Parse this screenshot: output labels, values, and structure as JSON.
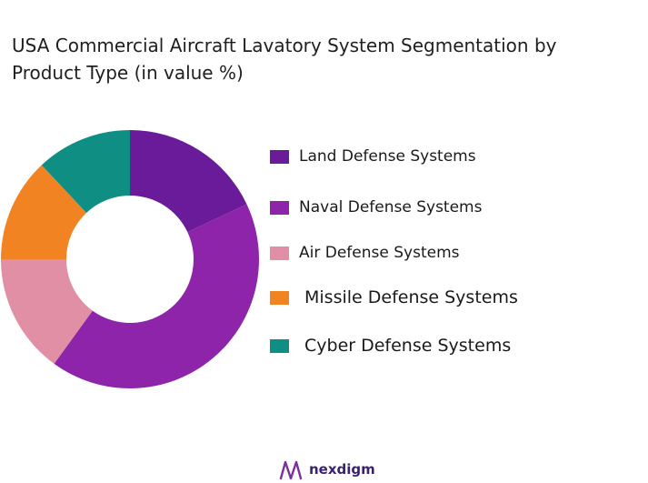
{
  "chart_data": {
    "type": "pie",
    "donut": true,
    "title": "USA Commercial Aircraft Lavatory System Segmentation by Product Type (in value %)",
    "categories": [
      "Land Defense Systems",
      "Naval Defense Systems",
      "Air Defense Systems",
      "Missile Defense Systems",
      "Cyber Defense Systems"
    ],
    "values": [
      18,
      42,
      15,
      13,
      12
    ],
    "colors": [
      "#6a1b9a",
      "#8e24aa",
      "#e08fa4",
      "#f28322",
      "#0f8e84"
    ],
    "legend_position": "right"
  },
  "brand": {
    "name": "nexdigm"
  }
}
